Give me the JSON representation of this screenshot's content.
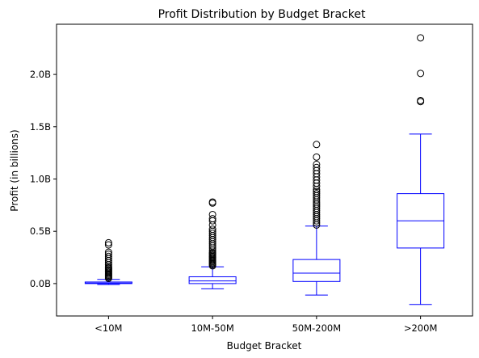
{
  "chart_data": {
    "type": "box",
    "title": "Profit Distribution by Budget Bracket",
    "xlabel": "Budget Bracket",
    "ylabel": "Profit (in billions)",
    "ylim": [
      -0.31,
      2.48
    ],
    "yticks": [
      {
        "value": 0.0,
        "label": "0.0B"
      },
      {
        "value": 0.5,
        "label": "0.5B"
      },
      {
        "value": 1.0,
        "label": "1.0B"
      },
      {
        "value": 1.5,
        "label": "1.5B"
      },
      {
        "value": 2.0,
        "label": "2.0B"
      }
    ],
    "box_color": "#0000ff",
    "grid": false,
    "categories": [
      "<10M",
      "10M-50M",
      "50M-200M",
      ">200M"
    ],
    "boxes": [
      {
        "category": "<10M",
        "whisker_low": -0.01,
        "q1": 0.0,
        "median": 0.005,
        "q3": 0.015,
        "whisker_high": 0.04,
        "outliers": [
          0.05,
          0.06,
          0.07,
          0.08,
          0.09,
          0.1,
          0.11,
          0.12,
          0.13,
          0.14,
          0.15,
          0.16,
          0.18,
          0.2,
          0.22,
          0.24,
          0.26,
          0.28,
          0.3,
          0.37,
          0.39
        ]
      },
      {
        "category": "10M-50M",
        "whisker_low": -0.05,
        "q1": 0.0,
        "median": 0.025,
        "q3": 0.065,
        "whisker_high": 0.16,
        "outliers": [
          0.17,
          0.18,
          0.19,
          0.2,
          0.21,
          0.22,
          0.23,
          0.24,
          0.25,
          0.26,
          0.27,
          0.28,
          0.29,
          0.3,
          0.32,
          0.34,
          0.36,
          0.38,
          0.4,
          0.42,
          0.44,
          0.46,
          0.48,
          0.5,
          0.52,
          0.56,
          0.6,
          0.62,
          0.66,
          0.77,
          0.78
        ]
      },
      {
        "category": "50M-200M",
        "whisker_low": -0.11,
        "q1": 0.02,
        "median": 0.1,
        "q3": 0.23,
        "whisker_high": 0.55,
        "outliers": [
          0.56,
          0.58,
          0.6,
          0.62,
          0.64,
          0.66,
          0.68,
          0.7,
          0.72,
          0.74,
          0.76,
          0.78,
          0.8,
          0.82,
          0.84,
          0.86,
          0.88,
          0.9,
          0.93,
          0.96,
          0.99,
          1.02,
          1.05,
          1.08,
          1.11,
          1.14,
          1.21,
          1.33
        ]
      },
      {
        "category": ">200M",
        "whisker_low": -0.2,
        "q1": 0.34,
        "median": 0.6,
        "q3": 0.86,
        "whisker_high": 1.43,
        "outliers": [
          1.74,
          1.75,
          2.01,
          2.35
        ]
      }
    ]
  }
}
